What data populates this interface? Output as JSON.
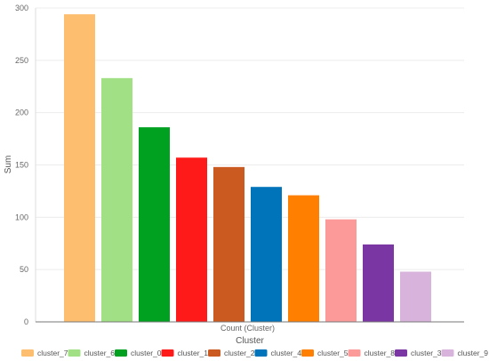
{
  "chart_data": {
    "type": "bar",
    "xlabel": "Cluster",
    "ylabel": "Sum",
    "category_axis_label": "Count (Cluster)",
    "ylim": [
      0,
      300
    ],
    "yticks": [
      0,
      50,
      100,
      150,
      200,
      250,
      300
    ],
    "grid": true,
    "legend_position": "bottom",
    "series": [
      {
        "name": "cluster_7",
        "value": 294,
        "color": "#fdbf6f"
      },
      {
        "name": "cluster_6",
        "value": 233,
        "color": "#a1e085"
      },
      {
        "name": "cluster_0",
        "value": 186,
        "color": "#00a020"
      },
      {
        "name": "cluster_1",
        "value": 157,
        "color": "#ff1a1a"
      },
      {
        "name": "cluster_2",
        "value": 148,
        "color": "#cb5a20"
      },
      {
        "name": "cluster_4",
        "value": 129,
        "color": "#0074bb"
      },
      {
        "name": "cluster_5",
        "value": 121,
        "color": "#ff7f00"
      },
      {
        "name": "cluster_8",
        "value": 98,
        "color": "#fb9a99"
      },
      {
        "name": "cluster_3",
        "value": 74,
        "color": "#7a36a3"
      },
      {
        "name": "cluster_9",
        "value": 48,
        "color": "#d8b4dc"
      }
    ]
  }
}
